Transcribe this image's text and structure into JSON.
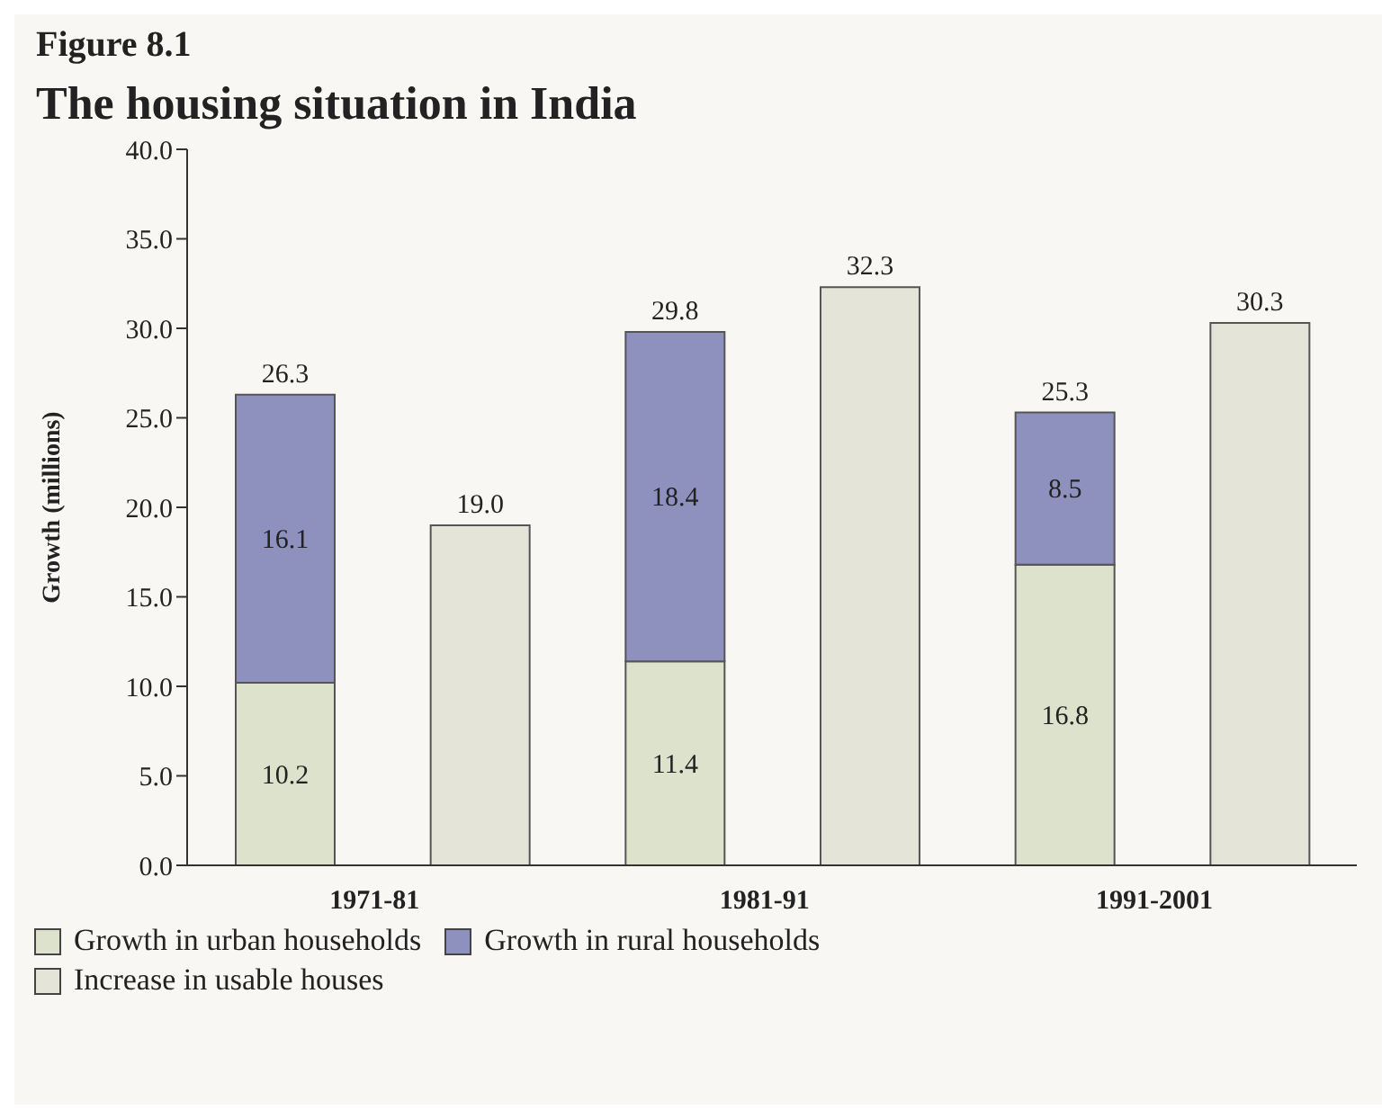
{
  "chart_data": {
    "type": "bar",
    "title": "Figure 8.1",
    "subtitle": "The housing situation in India",
    "ylabel": "Growth (millions)",
    "categories": [
      "1971-81",
      null,
      "1981-91",
      null,
      "1991-2001",
      null
    ],
    "stacked": true,
    "series": [
      {
        "name": "Growth in urban households",
        "color": "#dde2cc",
        "values": [
          10.2,
          null,
          11.4,
          null,
          16.8,
          null
        ],
        "value_labels": [
          "10.2",
          null,
          "11.4",
          null,
          "16.8",
          null
        ]
      },
      {
        "name": "Growth in rural households",
        "color": "#8e91bd",
        "values": [
          16.1,
          null,
          18.4,
          null,
          8.5,
          null
        ],
        "value_labels": [
          "16.1",
          null,
          "18.4",
          null,
          "8.5",
          null
        ]
      },
      {
        "name": "Increase in usable houses",
        "color": "#e4e4d8",
        "values": [
          null,
          19.0,
          null,
          32.3,
          null,
          30.3
        ],
        "value_labels": [
          null,
          "19.0",
          null,
          "32.3",
          null,
          "30.3"
        ]
      }
    ],
    "totals": [
      "26.3",
      null,
      "29.8",
      null,
      "25.3",
      null
    ],
    "ylim": [
      0,
      40
    ],
    "yticks": [
      {
        "value": 0,
        "label": "0.0"
      },
      {
        "value": 5,
        "label": "5.0"
      },
      {
        "value": 10,
        "label": "10.0"
      },
      {
        "value": 15,
        "label": "15.0"
      },
      {
        "value": 20,
        "label": "20.0"
      },
      {
        "value": 25,
        "label": "25.0"
      },
      {
        "value": 30,
        "label": "30.0"
      },
      {
        "value": 35,
        "label": "35.0"
      },
      {
        "value": 40,
        "label": "40.0"
      }
    ],
    "legend": "bottom"
  }
}
